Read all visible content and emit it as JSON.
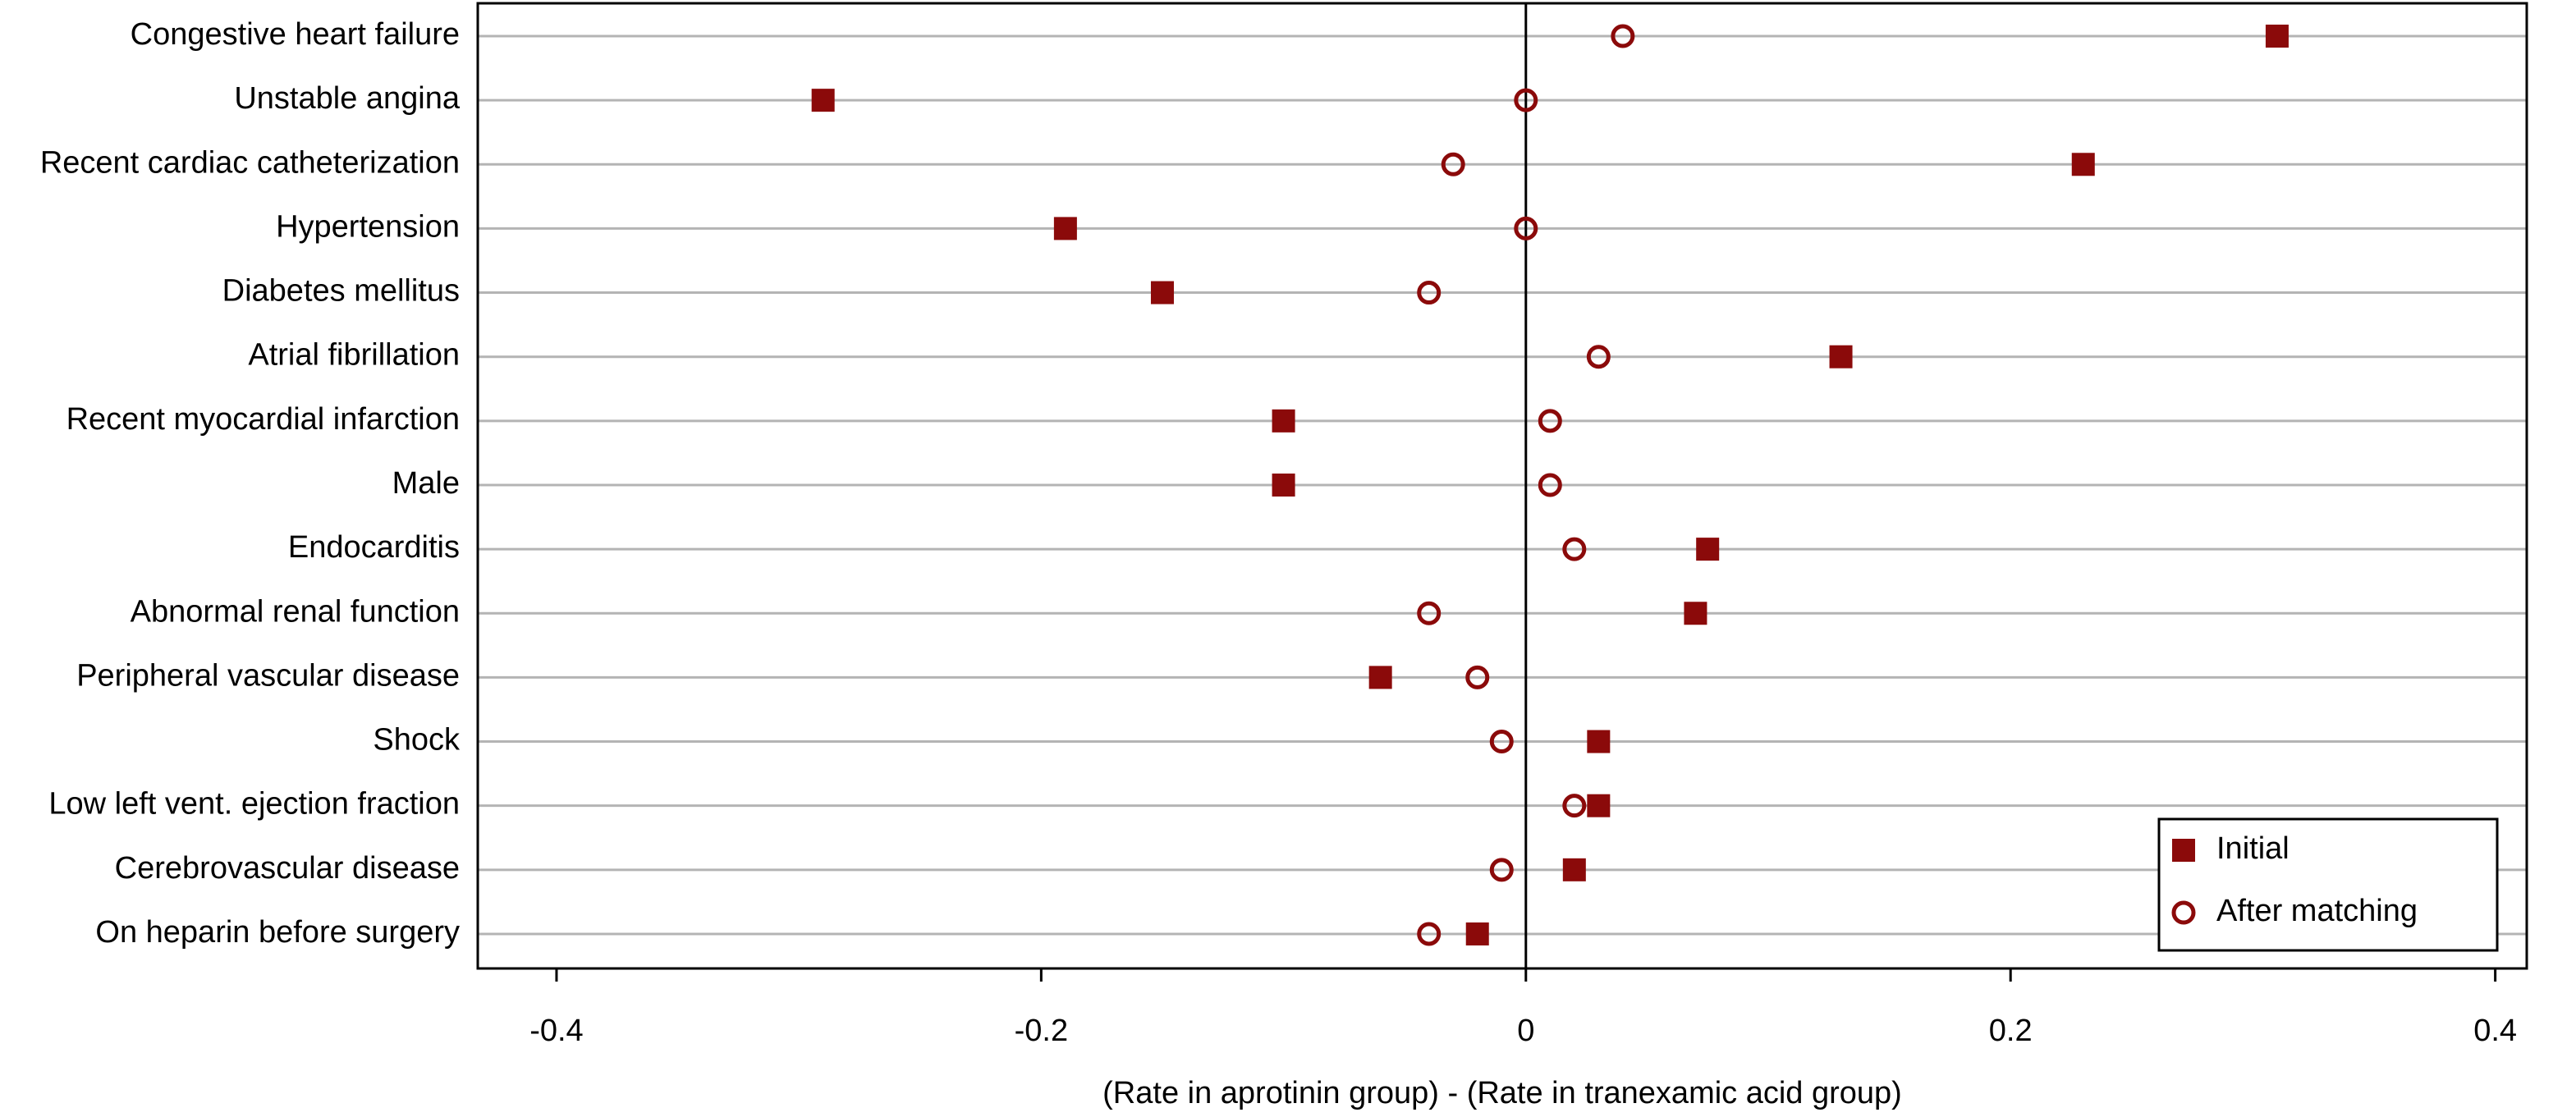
{
  "chart_data": {
    "type": "dot",
    "x_label": "(Rate in aprotinin group) - (Rate in tranexamic acid group)",
    "categories": [
      "Congestive heart failure",
      "Unstable angina",
      "Recent cardiac catheterization",
      "Hypertension",
      "Diabetes mellitus",
      "Atrial fibrillation",
      "Recent myocardial infarction",
      "Male",
      "Endocarditis",
      "Abnormal renal function",
      "Peripheral vascular disease",
      "Shock",
      "Low left vent. ejection fraction",
      "Cerebrovascular disease",
      "On heparin before surgery"
    ],
    "series": [
      {
        "name": "Initial",
        "color": "#8b0a0a",
        "marker": "square",
        "values": [
          0.31,
          -0.29,
          0.23,
          -0.19,
          -0.15,
          0.13,
          -0.1,
          -0.1,
          0.075,
          0.07,
          -0.06,
          0.03,
          0.03,
          0.02,
          -0.02
        ]
      },
      {
        "name": "After matching",
        "color": "#8b0a0a",
        "marker": "circle-open",
        "values": [
          0.04,
          0,
          -0.03,
          0,
          -0.04,
          0.03,
          0.01,
          0.01,
          0.02,
          -0.04,
          -0.02,
          -0.01,
          0.02,
          -0.01,
          -0.04
        ]
      }
    ],
    "xlim": [
      -0.4325,
      0.413
    ],
    "xticks": [
      -0.4,
      -0.2,
      0,
      0.2,
      0.4
    ],
    "reference_line": 0,
    "grid": true,
    "legend": "lower-right"
  }
}
